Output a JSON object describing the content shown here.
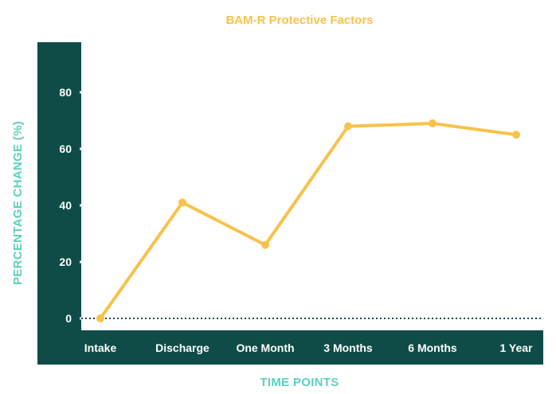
{
  "chart_data": {
    "type": "line",
    "title": "BAM-R Protective Factors",
    "xlabel": "TIME POINTS",
    "ylabel": "PERCENTAGE CHANGE (%)",
    "categories": [
      "Intake",
      "Discharge",
      "One Month",
      "3 Months",
      "6 Months",
      "1 Year"
    ],
    "series": [
      {
        "values": [
          0,
          41,
          26,
          68,
          69,
          65
        ]
      }
    ],
    "yticks": [
      0,
      20,
      40,
      60,
      80
    ],
    "ylim": [
      0,
      80
    ],
    "baseline": "dotted line at 0",
    "grid": false,
    "colors": {
      "line": "#f7c24a",
      "axis_bar": "#0f4c48",
      "axis_text": "#ffffff",
      "title": "#f7c24a",
      "axis_title": "#5ccfbf"
    }
  }
}
